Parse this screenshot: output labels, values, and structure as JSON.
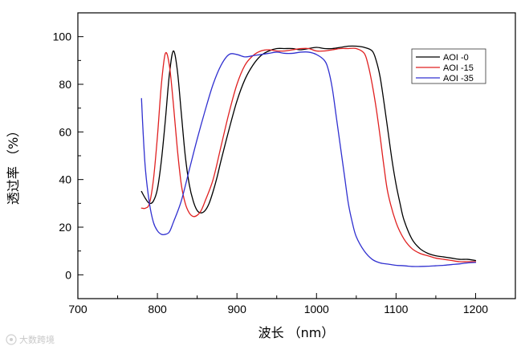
{
  "chart_data": {
    "type": "line",
    "xlabel": "波长  （nm）",
    "ylabel": "透过率 （%）",
    "xlim": [
      700,
      1250
    ],
    "ylim": [
      -10,
      110
    ],
    "x_ticks": [
      700,
      800,
      900,
      1000,
      1100,
      1200
    ],
    "y_ticks": [
      0,
      20,
      40,
      60,
      80,
      100
    ],
    "legend_position": "top-right",
    "grid": false,
    "series": [
      {
        "name": "AOI -0",
        "color": "#000000",
        "points": [
          [
            780,
            35
          ],
          [
            785,
            32
          ],
          [
            790,
            30
          ],
          [
            795,
            31
          ],
          [
            800,
            36
          ],
          [
            805,
            48
          ],
          [
            810,
            65
          ],
          [
            815,
            84
          ],
          [
            820,
            94
          ],
          [
            825,
            86
          ],
          [
            830,
            68
          ],
          [
            835,
            50
          ],
          [
            840,
            38
          ],
          [
            845,
            31
          ],
          [
            850,
            27
          ],
          [
            855,
            26
          ],
          [
            860,
            27
          ],
          [
            865,
            30
          ],
          [
            870,
            35
          ],
          [
            875,
            41
          ],
          [
            880,
            48
          ],
          [
            890,
            61
          ],
          [
            900,
            73
          ],
          [
            910,
            82
          ],
          [
            920,
            88
          ],
          [
            930,
            92
          ],
          [
            940,
            94
          ],
          [
            950,
            95
          ],
          [
            960,
            95
          ],
          [
            970,
            95
          ],
          [
            980,
            94.5
          ],
          [
            990,
            95
          ],
          [
            1000,
            95.5
          ],
          [
            1010,
            95
          ],
          [
            1020,
            95
          ],
          [
            1030,
            95.5
          ],
          [
            1040,
            96
          ],
          [
            1050,
            96
          ],
          [
            1060,
            95.5
          ],
          [
            1070,
            94
          ],
          [
            1075,
            90
          ],
          [
            1080,
            83
          ],
          [
            1085,
            72
          ],
          [
            1090,
            60
          ],
          [
            1095,
            48
          ],
          [
            1100,
            38
          ],
          [
            1105,
            30
          ],
          [
            1110,
            23
          ],
          [
            1120,
            15
          ],
          [
            1130,
            11
          ],
          [
            1140,
            9
          ],
          [
            1150,
            8
          ],
          [
            1160,
            7.5
          ],
          [
            1170,
            7
          ],
          [
            1180,
            6.5
          ],
          [
            1190,
            6.5
          ],
          [
            1200,
            6
          ]
        ]
      },
      {
        "name": "AOI -15",
        "color": "#e02020",
        "points": [
          [
            780,
            28
          ],
          [
            785,
            28
          ],
          [
            790,
            30
          ],
          [
            795,
            40
          ],
          [
            800,
            58
          ],
          [
            805,
            80
          ],
          [
            810,
            93
          ],
          [
            815,
            88
          ],
          [
            820,
            72
          ],
          [
            825,
            53
          ],
          [
            830,
            38
          ],
          [
            835,
            30
          ],
          [
            840,
            26
          ],
          [
            845,
            24.5
          ],
          [
            850,
            25
          ],
          [
            855,
            27
          ],
          [
            860,
            31
          ],
          [
            870,
            40
          ],
          [
            880,
            54
          ],
          [
            890,
            68
          ],
          [
            900,
            80
          ],
          [
            910,
            88
          ],
          [
            920,
            92
          ],
          [
            930,
            94
          ],
          [
            940,
            94.5
          ],
          [
            950,
            94
          ],
          [
            960,
            94
          ],
          [
            970,
            94.5
          ],
          [
            980,
            95
          ],
          [
            990,
            95
          ],
          [
            1000,
            94
          ],
          [
            1010,
            94
          ],
          [
            1020,
            94.5
          ],
          [
            1030,
            95
          ],
          [
            1040,
            95
          ],
          [
            1050,
            95
          ],
          [
            1060,
            93
          ],
          [
            1065,
            88
          ],
          [
            1070,
            80
          ],
          [
            1075,
            70
          ],
          [
            1080,
            58
          ],
          [
            1085,
            45
          ],
          [
            1090,
            34
          ],
          [
            1100,
            22
          ],
          [
            1110,
            15
          ],
          [
            1120,
            11
          ],
          [
            1130,
            9
          ],
          [
            1140,
            8
          ],
          [
            1150,
            7
          ],
          [
            1160,
            6.5
          ],
          [
            1170,
            6
          ],
          [
            1180,
            5.5
          ],
          [
            1190,
            5.5
          ],
          [
            1200,
            5.5
          ]
        ]
      },
      {
        "name": "AOI -35",
        "color": "#3030d0",
        "points": [
          [
            780,
            74
          ],
          [
            782,
            60
          ],
          [
            785,
            44
          ],
          [
            790,
            30
          ],
          [
            795,
            22
          ],
          [
            800,
            18.5
          ],
          [
            805,
            17
          ],
          [
            810,
            17
          ],
          [
            815,
            18
          ],
          [
            820,
            22
          ],
          [
            830,
            31
          ],
          [
            840,
            44
          ],
          [
            850,
            57
          ],
          [
            860,
            69
          ],
          [
            870,
            80
          ],
          [
            880,
            88
          ],
          [
            890,
            92.5
          ],
          [
            900,
            92.5
          ],
          [
            910,
            91.5
          ],
          [
            920,
            92
          ],
          [
            930,
            92.5
          ],
          [
            940,
            93
          ],
          [
            950,
            93.5
          ],
          [
            960,
            93
          ],
          [
            970,
            93
          ],
          [
            980,
            93.5
          ],
          [
            990,
            93.5
          ],
          [
            1000,
            92.5
          ],
          [
            1010,
            90
          ],
          [
            1015,
            86
          ],
          [
            1020,
            78
          ],
          [
            1025,
            66
          ],
          [
            1030,
            54
          ],
          [
            1035,
            42
          ],
          [
            1040,
            30
          ],
          [
            1045,
            22
          ],
          [
            1050,
            16
          ],
          [
            1060,
            10
          ],
          [
            1070,
            6.5
          ],
          [
            1080,
            5
          ],
          [
            1090,
            4.5
          ],
          [
            1100,
            4
          ],
          [
            1110,
            3.8
          ],
          [
            1120,
            3.5
          ],
          [
            1130,
            3.5
          ],
          [
            1140,
            3.6
          ],
          [
            1150,
            3.8
          ],
          [
            1160,
            4
          ],
          [
            1170,
            4.3
          ],
          [
            1180,
            4.6
          ],
          [
            1190,
            5
          ],
          [
            1200,
            5.2
          ]
        ]
      }
    ]
  },
  "watermark": {
    "text": "大数跨境",
    "icon": "watermark-logo-icon"
  }
}
